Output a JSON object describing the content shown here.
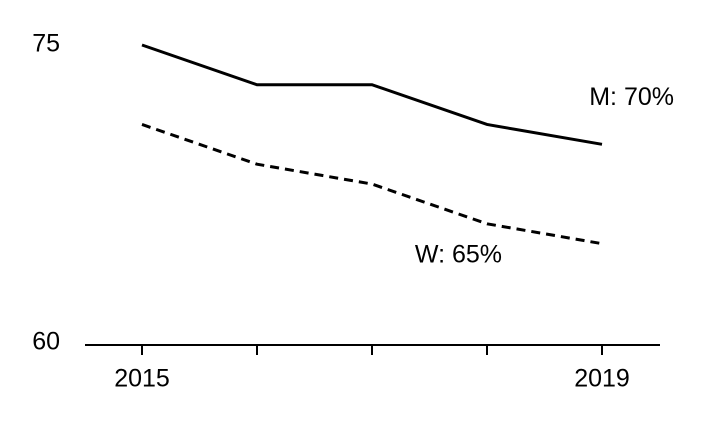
{
  "chart_data": {
    "type": "line",
    "categories": [
      "2015",
      null,
      null,
      null,
      "2019"
    ],
    "series": [
      {
        "name": "M",
        "label": "M: 70%",
        "color": "#000000",
        "style": "solid",
        "values": [
          75,
          73,
          73,
          71,
          70
        ]
      },
      {
        "name": "W",
        "label": "W: 65%",
        "color": "#000000",
        "style": "dashed",
        "values": [
          71,
          69,
          68,
          66,
          65
        ]
      }
    ],
    "ylim": [
      60,
      75
    ],
    "yticks": [
      60,
      75
    ],
    "grid": false
  }
}
